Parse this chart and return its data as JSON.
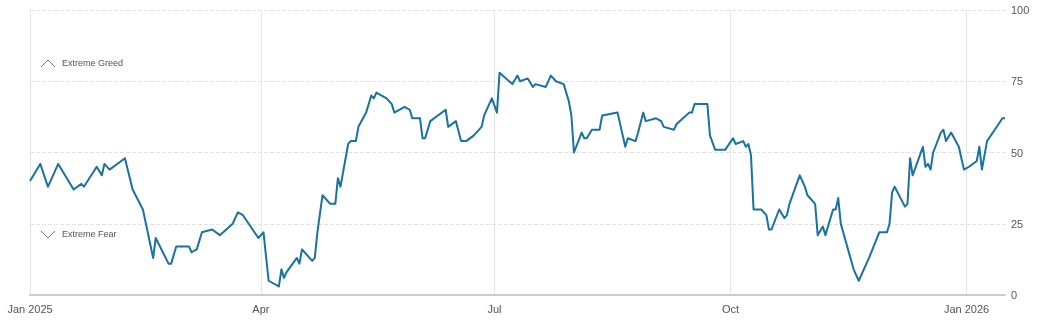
{
  "chart_data": {
    "type": "line",
    "x": [
      "2025-01-01",
      "2025-01-05",
      "2025-01-08",
      "2025-01-12",
      "2025-01-18",
      "2025-01-21",
      "2025-01-22",
      "2025-01-27",
      "2025-01-29",
      "2025-01-30",
      "2025-02-01",
      "2025-02-07",
      "2025-02-10",
      "2025-02-14",
      "2025-02-18",
      "2025-02-19",
      "2025-02-24",
      "2025-02-25",
      "2025-02-27",
      "2025-03-04",
      "2025-03-05",
      "2025-03-07",
      "2025-03-09",
      "2025-03-13",
      "2025-03-16",
      "2025-03-21",
      "2025-03-23",
      "2025-03-25",
      "2025-03-31",
      "2025-04-02",
      "2025-04-04",
      "2025-04-08",
      "2025-04-09",
      "2025-04-10",
      "2025-04-11",
      "2025-04-15",
      "2025-04-16",
      "2025-04-17",
      "2025-04-21",
      "2025-04-22",
      "2025-04-23",
      "2025-04-25",
      "2025-04-28",
      "2025-04-30",
      "2025-05-01",
      "2025-05-02",
      "2025-05-05",
      "2025-05-06",
      "2025-05-08",
      "2025-05-09",
      "2025-05-12",
      "2025-05-14",
      "2025-05-15",
      "2025-05-16",
      "2025-05-20",
      "2025-05-22",
      "2025-05-23",
      "2025-05-27",
      "2025-05-29",
      "2025-05-30",
      "2025-06-02",
      "2025-06-03",
      "2025-06-04",
      "2025-06-06",
      "2025-06-12",
      "2025-06-13",
      "2025-06-16",
      "2025-06-18",
      "2025-06-20",
      "2025-06-23",
      "2025-06-26",
      "2025-06-27",
      "2025-06-30",
      "2025-07-02",
      "2025-07-03",
      "2025-07-08",
      "2025-07-10",
      "2025-07-11",
      "2025-07-14",
      "2025-07-16",
      "2025-07-17",
      "2025-07-21",
      "2025-07-23",
      "2025-07-25",
      "2025-07-28",
      "2025-07-30",
      "2025-07-31",
      "2025-08-01",
      "2025-08-04",
      "2025-08-05",
      "2025-08-06",
      "2025-08-08",
      "2025-08-11",
      "2025-08-12",
      "2025-08-18",
      "2025-08-21",
      "2025-08-22",
      "2025-08-25",
      "2025-08-26",
      "2025-08-28",
      "2025-08-29",
      "2025-09-02",
      "2025-09-04",
      "2025-09-05",
      "2025-09-09",
      "2025-09-10",
      "2025-09-15",
      "2025-09-16",
      "2025-09-17",
      "2025-09-22",
      "2025-09-23",
      "2025-09-25",
      "2025-09-29",
      "2025-10-02",
      "2025-10-03",
      "2025-10-06",
      "2025-10-07",
      "2025-10-08",
      "2025-10-09",
      "2025-10-10",
      "2025-10-13",
      "2025-10-15",
      "2025-10-16",
      "2025-10-17",
      "2025-10-20",
      "2025-10-22",
      "2025-10-23",
      "2025-10-24",
      "2025-10-28",
      "2025-10-30",
      "2025-10-31",
      "2025-11-03",
      "2025-11-04",
      "2025-11-06",
      "2025-11-07",
      "2025-11-10",
      "2025-11-11",
      "2025-11-12",
      "2025-11-13",
      "2025-11-18",
      "2025-11-20",
      "2025-11-24",
      "2025-11-28",
      "2025-12-01",
      "2025-12-02",
      "2025-12-03",
      "2025-12-04",
      "2025-12-08",
      "2025-12-09",
      "2025-12-10",
      "2025-12-11",
      "2025-12-15",
      "2025-12-16",
      "2025-12-17",
      "2025-12-18",
      "2025-12-19",
      "2025-12-22",
      "2025-12-23",
      "2025-12-24",
      "2025-12-26",
      "2025-12-29",
      "2025-12-30",
      "2025-12-31",
      "2026-01-02",
      "2026-01-05",
      "2026-01-06",
      "2026-01-07",
      "2026-01-09",
      "2026-01-12",
      "2026-01-15",
      "2026-01-16"
    ],
    "series": [
      {
        "color": "#1a72a0",
        "values": [
          40,
          46,
          38,
          46,
          37,
          39,
          38,
          45,
          42,
          46,
          44,
          48,
          37,
          30,
          13,
          20,
          11,
          11,
          17,
          17,
          15,
          16,
          22,
          23,
          21,
          25,
          29,
          28,
          20,
          22,
          5,
          3,
          9,
          6,
          8,
          13,
          11,
          16,
          12,
          13,
          22,
          35,
          32,
          32,
          41,
          38,
          53,
          54,
          54,
          59,
          64,
          70,
          69,
          71,
          69,
          67,
          64,
          66,
          65,
          62,
          62,
          55,
          55,
          61,
          65,
          59,
          61,
          54,
          54,
          56,
          59,
          63,
          69,
          64,
          78,
          74,
          77,
          75,
          76,
          73,
          74,
          73,
          77,
          75,
          74,
          68,
          63,
          50,
          57,
          55,
          55,
          58,
          58,
          63,
          64,
          52,
          55,
          54,
          57,
          64,
          61,
          62,
          61,
          59,
          58,
          60,
          64,
          64,
          67,
          67,
          56,
          51,
          51,
          55,
          53,
          54,
          52,
          53,
          49,
          30,
          30,
          28,
          23,
          23,
          30,
          27,
          28,
          32,
          42,
          38,
          35,
          32,
          21,
          24,
          21,
          30,
          30,
          34,
          25,
          9,
          5,
          13,
          22,
          22,
          25,
          36,
          38,
          31,
          32,
          48,
          42,
          52,
          45,
          46,
          44,
          50,
          57,
          58,
          54,
          57,
          52,
          48,
          44,
          45,
          47,
          52,
          44,
          54,
          58,
          62,
          62
        ]
      }
    ],
    "xlim": [
      "2025-01-01",
      "2026-01-16"
    ],
    "xticks": [
      {
        "value": "2025-01-01",
        "label": "Jan 2025"
      },
      {
        "value": "2025-04-01",
        "label": "Apr"
      },
      {
        "value": "2025-07-01",
        "label": "Jul"
      },
      {
        "value": "2025-10-01",
        "label": "Oct"
      },
      {
        "value": "2026-01-01",
        "label": "Jan 2026"
      }
    ],
    "ylim": [
      0,
      100
    ],
    "yticks": [
      0,
      25,
      50,
      75,
      100
    ],
    "grid": true,
    "marker": "none",
    "line_style": "solid",
    "annotations": [
      "Extreme Greed",
      "Extreme Fear"
    ]
  }
}
